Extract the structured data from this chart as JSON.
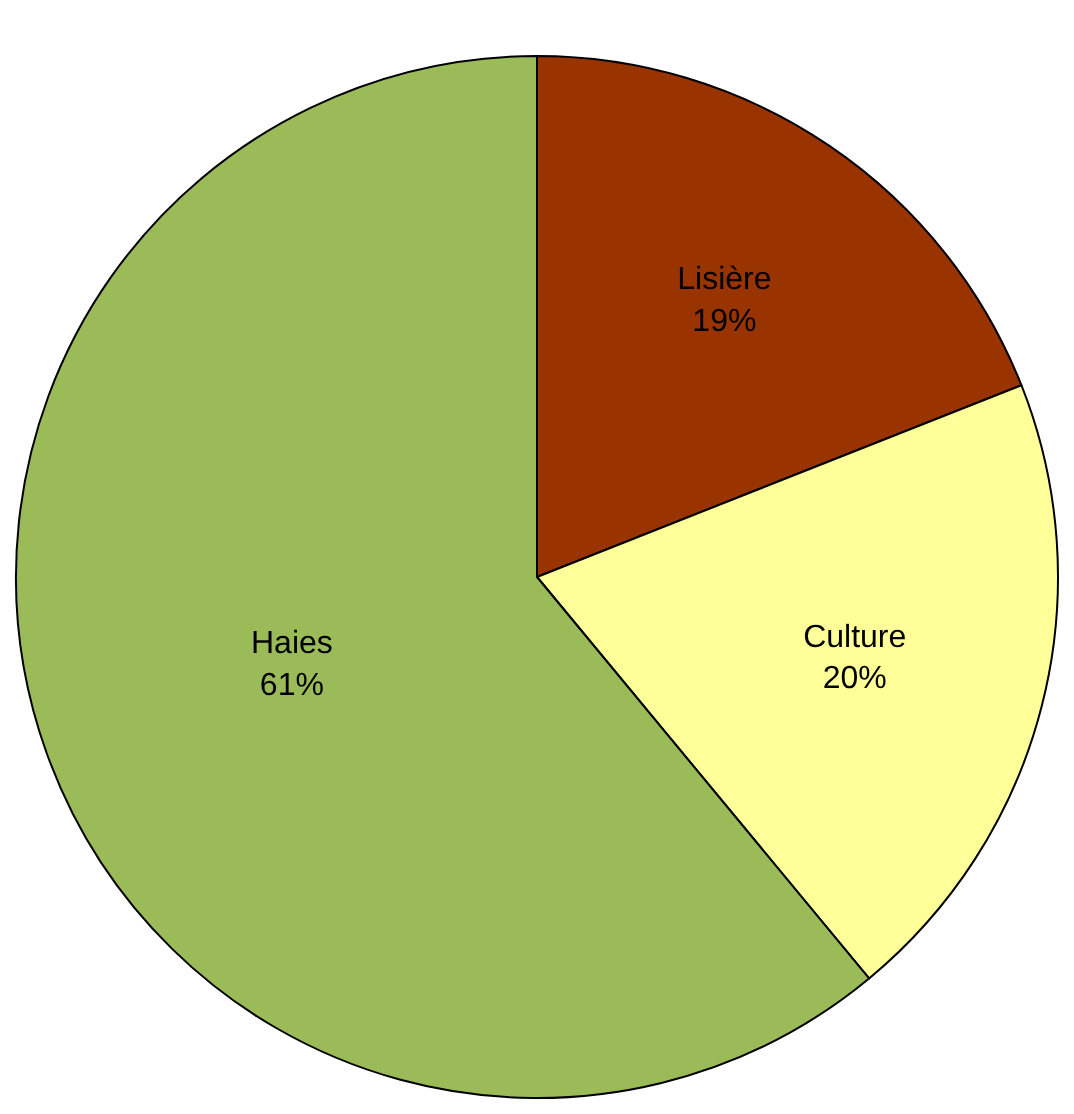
{
  "chart_data": {
    "type": "pie",
    "categories": [
      "Lisière",
      "Culture",
      "Haies"
    ],
    "values": [
      19,
      20,
      61
    ],
    "value_labels": [
      "19%",
      "20%",
      "61%"
    ],
    "colors": [
      "#993300",
      "#ffff99",
      "#9bbb59"
    ],
    "legend": false
  }
}
